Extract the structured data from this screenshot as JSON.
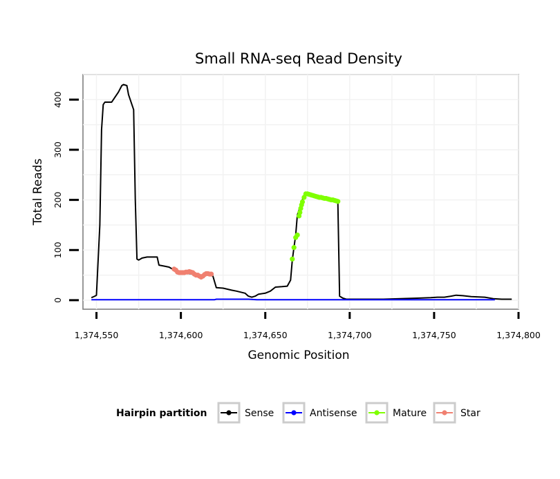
{
  "chart_data": {
    "type": "line",
    "title": "Small RNA-seq Read Density",
    "xlabel": "Genomic Position",
    "ylabel": "Total Reads",
    "xlim": [
      1374542,
      1374800
    ],
    "ylim": [
      -18,
      450
    ],
    "x_ticks": [
      1374550,
      1374600,
      1374650,
      1374700,
      1374750,
      1374800
    ],
    "x_tick_labels": [
      "1,374,550",
      "1,374,600",
      "1,374,650",
      "1,374,700",
      "1,374,750",
      "1,374,800"
    ],
    "y_ticks": [
      0,
      100,
      200,
      300,
      400
    ],
    "y_tick_labels": [
      "0",
      "100",
      "200",
      "300",
      "400"
    ],
    "grid": true,
    "legend": {
      "title": "Hairpin partition",
      "position": "bottom",
      "entries": [
        {
          "label": "Sense",
          "color": "#000000"
        },
        {
          "label": "Antisense",
          "color": "#0000ff"
        },
        {
          "label": "Mature",
          "color": "#7fff00"
        },
        {
          "label": "Star",
          "color": "#f08070"
        }
      ]
    },
    "series": [
      {
        "name": "Sense",
        "color": "#000000",
        "style": "line",
        "points": [
          [
            1374547,
            5
          ],
          [
            1374549,
            8
          ],
          [
            1374550,
            10
          ],
          [
            1374552,
            150
          ],
          [
            1374553,
            340
          ],
          [
            1374554,
            390
          ],
          [
            1374555,
            395
          ],
          [
            1374557,
            395
          ],
          [
            1374559,
            395
          ],
          [
            1374561,
            405
          ],
          [
            1374563,
            415
          ],
          [
            1374565,
            428
          ],
          [
            1374566,
            430
          ],
          [
            1374568,
            428
          ],
          [
            1374569,
            410
          ],
          [
            1374571,
            390
          ],
          [
            1374572,
            380
          ],
          [
            1374573,
            200
          ],
          [
            1374574,
            82
          ],
          [
            1374575,
            80
          ],
          [
            1374577,
            84
          ],
          [
            1374580,
            86
          ],
          [
            1374584,
            86
          ],
          [
            1374586,
            86
          ],
          [
            1374587,
            70
          ],
          [
            1374590,
            68
          ],
          [
            1374593,
            66
          ],
          [
            1374596,
            60
          ],
          [
            1374597,
            60
          ],
          [
            1374600,
            55
          ],
          [
            1374605,
            53
          ],
          [
            1374610,
            50
          ],
          [
            1374613,
            50
          ],
          [
            1374617,
            50
          ],
          [
            1374619,
            48
          ],
          [
            1374621,
            25
          ],
          [
            1374625,
            24
          ],
          [
            1374630,
            20
          ],
          [
            1374633,
            18
          ],
          [
            1374638,
            14
          ],
          [
            1374640,
            8
          ],
          [
            1374642,
            6
          ],
          [
            1374644,
            8
          ],
          [
            1374646,
            12
          ],
          [
            1374650,
            14
          ],
          [
            1374653,
            18
          ],
          [
            1374656,
            26
          ],
          [
            1374660,
            27
          ],
          [
            1374663,
            28
          ],
          [
            1374665,
            40
          ],
          [
            1374666,
            80
          ],
          [
            1374667,
            105
          ],
          [
            1374668,
            130
          ],
          [
            1374669,
            170
          ],
          [
            1374670,
            180
          ],
          [
            1374671,
            190
          ],
          [
            1374672,
            200
          ],
          [
            1374673,
            210
          ],
          [
            1374675,
            212
          ],
          [
            1374678,
            210
          ],
          [
            1374682,
            206
          ],
          [
            1374686,
            203
          ],
          [
            1374690,
            200
          ],
          [
            1374692,
            198
          ],
          [
            1374693,
            194
          ],
          [
            1374694,
            8
          ],
          [
            1374696,
            4
          ],
          [
            1374698,
            2
          ],
          [
            1374700,
            2
          ],
          [
            1374710,
            2
          ],
          [
            1374720,
            2
          ],
          [
            1374730,
            3
          ],
          [
            1374740,
            4
          ],
          [
            1374748,
            5
          ],
          [
            1374752,
            6
          ],
          [
            1374756,
            6
          ],
          [
            1374760,
            8
          ],
          [
            1374763,
            10
          ],
          [
            1374767,
            9
          ],
          [
            1374772,
            7
          ],
          [
            1374780,
            6
          ],
          [
            1374785,
            3
          ],
          [
            1374790,
            2
          ],
          [
            1374796,
            2
          ]
        ]
      },
      {
        "name": "Antisense",
        "color": "#0000ff",
        "style": "line",
        "points": [
          [
            1374547,
            1
          ],
          [
            1374620,
            1
          ],
          [
            1374621,
            2
          ],
          [
            1374640,
            2
          ],
          [
            1374645,
            1
          ],
          [
            1374700,
            1
          ],
          [
            1374780,
            1
          ],
          [
            1374786,
            1
          ]
        ]
      },
      {
        "name": "Mature",
        "color": "#7fff00",
        "style": "points",
        "points": [
          [
            1374666,
            82
          ],
          [
            1374667,
            105
          ],
          [
            1374668,
            125
          ],
          [
            1374669,
            130
          ],
          [
            1374670,
            168
          ],
          [
            1374670.5,
            175
          ],
          [
            1374671,
            183
          ],
          [
            1374671.5,
            190
          ],
          [
            1374672,
            196
          ],
          [
            1374673,
            205
          ],
          [
            1374674,
            212
          ],
          [
            1374675,
            212
          ],
          [
            1374676,
            211
          ],
          [
            1374677,
            210
          ],
          [
            1374678,
            209
          ],
          [
            1374679,
            208
          ],
          [
            1374680,
            207
          ],
          [
            1374681,
            206
          ],
          [
            1374682,
            205
          ],
          [
            1374683,
            205
          ],
          [
            1374684,
            204
          ],
          [
            1374685,
            203
          ],
          [
            1374686,
            203
          ],
          [
            1374687,
            202
          ],
          [
            1374688,
            201
          ],
          [
            1374689,
            200
          ],
          [
            1374690,
            200
          ],
          [
            1374691,
            199
          ],
          [
            1374692,
            198
          ],
          [
            1374693,
            197
          ]
        ]
      },
      {
        "name": "Star",
        "color": "#f08070",
        "style": "points",
        "points": [
          [
            1374596,
            62
          ],
          [
            1374597,
            60
          ],
          [
            1374598,
            56
          ],
          [
            1374599,
            55
          ],
          [
            1374600,
            55
          ],
          [
            1374601,
            55
          ],
          [
            1374602,
            55
          ],
          [
            1374603,
            56
          ],
          [
            1374604,
            56
          ],
          [
            1374605,
            57
          ],
          [
            1374606,
            56
          ],
          [
            1374607,
            55
          ],
          [
            1374608,
            52
          ],
          [
            1374609,
            50
          ],
          [
            1374610,
            50
          ],
          [
            1374611,
            48
          ],
          [
            1374612,
            46
          ],
          [
            1374613,
            48
          ],
          [
            1374614,
            51
          ],
          [
            1374615,
            53
          ],
          [
            1374616,
            53
          ],
          [
            1374617,
            52
          ],
          [
            1374618,
            52
          ]
        ]
      }
    ]
  }
}
